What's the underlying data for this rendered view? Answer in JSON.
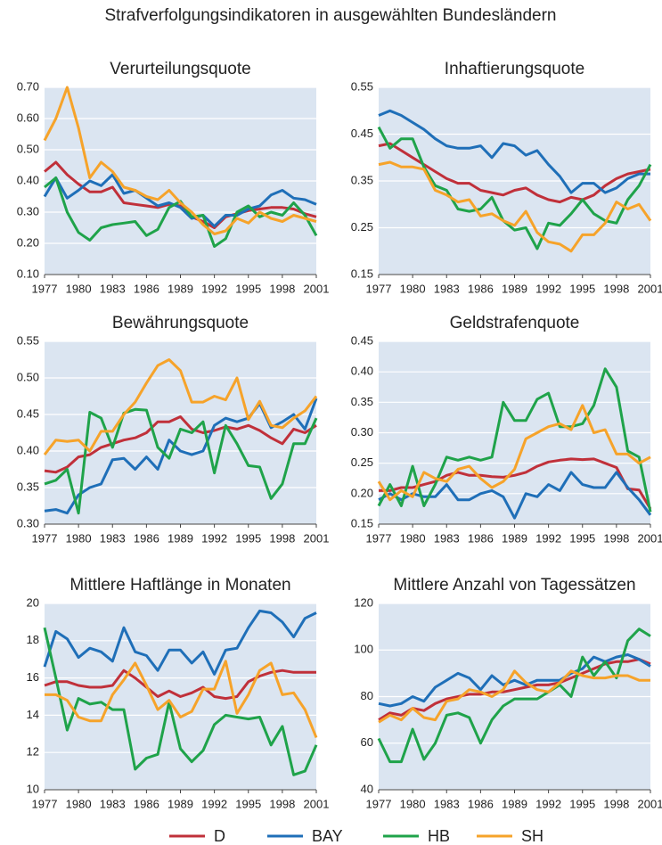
{
  "title": "Strafverfolgungsindikatoren in ausgewählten Bundesländern",
  "chart_data": [
    {
      "type": "line",
      "title": "Verurteilungsquote",
      "x": [
        1977,
        1978,
        1979,
        1980,
        1981,
        1982,
        1983,
        1984,
        1985,
        1986,
        1987,
        1988,
        1989,
        1990,
        1991,
        1992,
        1993,
        1994,
        1995,
        1996,
        1997,
        1998,
        1999,
        2000,
        2001
      ],
      "xlim": [
        1977,
        2001
      ],
      "xticks": [
        1977,
        1980,
        1983,
        1986,
        1989,
        1992,
        1995,
        1998,
        2001
      ],
      "ylim": [
        0.1,
        0.7
      ],
      "yticks": [
        {
          "value": 0.1,
          "label": "0.10"
        },
        {
          "value": 0.2,
          "label": "0.20"
        },
        {
          "value": 0.3,
          "label": "0.30"
        },
        {
          "value": 0.4,
          "label": "0.40"
        },
        {
          "value": 0.5,
          "label": "0.50"
        },
        {
          "value": 0.6,
          "label": "0.60"
        },
        {
          "value": 0.7,
          "label": "0.70"
        }
      ],
      "grid": true,
      "series": [
        {
          "name": "D",
          "color": "#c0303a",
          "values": [
            0.43,
            0.46,
            0.42,
            0.39,
            0.365,
            0.365,
            0.38,
            0.33,
            0.325,
            0.32,
            0.315,
            0.325,
            0.32,
            0.285,
            0.27,
            0.25,
            0.285,
            0.295,
            0.305,
            0.31,
            0.315,
            0.315,
            0.31,
            0.295,
            0.285
          ]
        },
        {
          "name": "BAY",
          "color": "#1f6fb8",
          "values": [
            0.35,
            0.41,
            0.345,
            0.37,
            0.4,
            0.385,
            0.42,
            0.36,
            0.37,
            0.345,
            0.32,
            0.33,
            0.315,
            0.28,
            0.29,
            0.255,
            0.29,
            0.29,
            0.31,
            0.32,
            0.355,
            0.37,
            0.345,
            0.34,
            0.325
          ]
        },
        {
          "name": "HB",
          "color": "#1fa34a",
          "values": [
            0.38,
            0.41,
            0.3,
            0.235,
            0.21,
            0.25,
            0.26,
            0.265,
            0.27,
            0.225,
            0.245,
            0.315,
            0.335,
            0.285,
            0.29,
            0.19,
            0.215,
            0.3,
            0.32,
            0.285,
            0.3,
            0.29,
            0.33,
            0.29,
            0.225
          ]
        },
        {
          "name": "SH",
          "color": "#f6a32a",
          "values": [
            0.53,
            0.6,
            0.7,
            0.57,
            0.41,
            0.46,
            0.43,
            0.38,
            0.37,
            0.35,
            0.34,
            0.37,
            0.33,
            0.3,
            0.26,
            0.23,
            0.24,
            0.28,
            0.265,
            0.3,
            0.28,
            0.27,
            0.29,
            0.28,
            0.27
          ]
        }
      ]
    },
    {
      "type": "line",
      "title": "Inhaftierungsquote",
      "x": [
        1977,
        1978,
        1979,
        1980,
        1981,
        1982,
        1983,
        1984,
        1985,
        1986,
        1987,
        1988,
        1989,
        1990,
        1991,
        1992,
        1993,
        1994,
        1995,
        1996,
        1997,
        1998,
        1999,
        2000,
        2001
      ],
      "xlim": [
        1977,
        2001
      ],
      "xticks": [
        1977,
        1980,
        1983,
        1986,
        1989,
        1992,
        1995,
        1998,
        2001
      ],
      "ylim": [
        0.15,
        0.55
      ],
      "yticks": [
        0.15,
        0.25,
        0.35,
        0.45,
        0.55
      ],
      "grid": true,
      "series": [
        {
          "name": "D",
          "color": "#c0303a",
          "values": [
            0.425,
            0.43,
            0.415,
            0.4,
            0.385,
            0.37,
            0.355,
            0.345,
            0.345,
            0.33,
            0.325,
            0.32,
            0.33,
            0.335,
            0.32,
            0.31,
            0.305,
            0.315,
            0.31,
            0.32,
            0.34,
            0.355,
            0.365,
            0.37,
            0.375
          ]
        },
        {
          "name": "BAY",
          "color": "#1f6fb8",
          "values": [
            0.49,
            0.5,
            0.49,
            0.475,
            0.46,
            0.44,
            0.425,
            0.42,
            0.42,
            0.425,
            0.4,
            0.43,
            0.425,
            0.405,
            0.415,
            0.385,
            0.36,
            0.325,
            0.345,
            0.345,
            0.325,
            0.335,
            0.355,
            0.365,
            0.365
          ]
        },
        {
          "name": "HB",
          "color": "#1fa34a",
          "values": [
            0.465,
            0.42,
            0.44,
            0.44,
            0.38,
            0.34,
            0.33,
            0.29,
            0.285,
            0.29,
            0.315,
            0.265,
            0.245,
            0.25,
            0.205,
            0.26,
            0.255,
            0.28,
            0.31,
            0.28,
            0.265,
            0.26,
            0.31,
            0.34,
            0.385
          ]
        },
        {
          "name": "SH",
          "color": "#f6a32a",
          "values": [
            0.385,
            0.39,
            0.38,
            0.38,
            0.375,
            0.33,
            0.32,
            0.305,
            0.31,
            0.275,
            0.28,
            0.265,
            0.255,
            0.285,
            0.24,
            0.22,
            0.215,
            0.2,
            0.235,
            0.235,
            0.26,
            0.305,
            0.29,
            0.3,
            0.265
          ]
        }
      ]
    },
    {
      "type": "line",
      "title": "Bewährungsquote",
      "x": [
        1977,
        1978,
        1979,
        1980,
        1981,
        1982,
        1983,
        1984,
        1985,
        1986,
        1987,
        1988,
        1989,
        1990,
        1991,
        1992,
        1993,
        1994,
        1995,
        1996,
        1997,
        1998,
        1999,
        2000,
        2001
      ],
      "xlim": [
        1977,
        2001
      ],
      "xticks": [
        1977,
        1980,
        1983,
        1986,
        1989,
        1992,
        1995,
        1998,
        2001
      ],
      "ylim": [
        0.3,
        0.55
      ],
      "yticks": [
        {
          "value": 0.3,
          "label": "0.30"
        },
        0.35,
        {
          "value": 0.4,
          "label": "0.40"
        },
        0.45,
        {
          "value": 0.5,
          "label": "0.50"
        },
        0.55
      ],
      "grid": true,
      "series": [
        {
          "name": "D",
          "color": "#c0303a",
          "values": [
            0.373,
            0.371,
            0.378,
            0.392,
            0.395,
            0.405,
            0.41,
            0.415,
            0.418,
            0.425,
            0.44,
            0.44,
            0.447,
            0.43,
            0.425,
            0.428,
            0.433,
            0.43,
            0.435,
            0.428,
            0.418,
            0.41,
            0.43,
            0.425,
            0.435
          ]
        },
        {
          "name": "BAY",
          "color": "#1f6fb8",
          "values": [
            0.318,
            0.32,
            0.315,
            0.34,
            0.35,
            0.355,
            0.388,
            0.39,
            0.375,
            0.392,
            0.375,
            0.415,
            0.4,
            0.395,
            0.4,
            0.435,
            0.445,
            0.44,
            0.445,
            0.465,
            0.432,
            0.44,
            0.45,
            0.43,
            0.472
          ]
        },
        {
          "name": "HB",
          "color": "#1fa34a",
          "values": [
            0.355,
            0.36,
            0.375,
            0.315,
            0.453,
            0.445,
            0.405,
            0.452,
            0.457,
            0.456,
            0.405,
            0.39,
            0.43,
            0.425,
            0.44,
            0.37,
            0.435,
            0.41,
            0.38,
            0.378,
            0.335,
            0.355,
            0.41,
            0.41,
            0.445
          ]
        },
        {
          "name": "SH",
          "color": "#f6a32a",
          "values": [
            0.395,
            0.415,
            0.413,
            0.415,
            0.4,
            0.427,
            0.427,
            0.45,
            0.467,
            0.493,
            0.517,
            0.525,
            0.51,
            0.467,
            0.467,
            0.475,
            0.47,
            0.5,
            0.443,
            0.468,
            0.435,
            0.432,
            0.445,
            0.455,
            0.475
          ]
        }
      ]
    },
    {
      "type": "line",
      "title": "Geldstrafenquote",
      "x": [
        1977,
        1978,
        1979,
        1980,
        1981,
        1982,
        1983,
        1984,
        1985,
        1986,
        1987,
        1988,
        1989,
        1990,
        1991,
        1992,
        1993,
        1994,
        1995,
        1996,
        1997,
        1998,
        1999,
        2000,
        2001
      ],
      "xlim": [
        1977,
        2001
      ],
      "xticks": [
        1977,
        1980,
        1983,
        1986,
        1989,
        1992,
        1995,
        1998,
        2001
      ],
      "ylim": [
        0.15,
        0.45
      ],
      "yticks": [
        0.15,
        {
          "value": 0.2,
          "label": "0.20"
        },
        0.25,
        {
          "value": 0.3,
          "label": "0.30"
        },
        0.35,
        {
          "value": 0.4,
          "label": "0.40"
        },
        0.45
      ],
      "grid": true,
      "series": [
        {
          "name": "D",
          "color": "#c0303a",
          "values": [
            0.205,
            0.205,
            0.21,
            0.21,
            0.215,
            0.22,
            0.23,
            0.235,
            0.23,
            0.23,
            0.228,
            0.227,
            0.23,
            0.235,
            0.245,
            0.252,
            0.255,
            0.257,
            0.256,
            0.257,
            0.25,
            0.243,
            0.208,
            0.206,
            0.175
          ]
        },
        {
          "name": "BAY",
          "color": "#1f6fb8",
          "values": [
            0.19,
            0.2,
            0.19,
            0.2,
            0.195,
            0.195,
            0.215,
            0.19,
            0.19,
            0.2,
            0.205,
            0.195,
            0.16,
            0.2,
            0.195,
            0.215,
            0.205,
            0.235,
            0.215,
            0.21,
            0.21,
            0.235,
            0.21,
            0.19,
            0.165
          ]
        },
        {
          "name": "HB",
          "color": "#1fa34a",
          "values": [
            0.18,
            0.215,
            0.18,
            0.245,
            0.18,
            0.215,
            0.26,
            0.255,
            0.26,
            0.255,
            0.26,
            0.35,
            0.32,
            0.32,
            0.355,
            0.365,
            0.31,
            0.31,
            0.315,
            0.345,
            0.405,
            0.375,
            0.27,
            0.26,
            0.17
          ]
        },
        {
          "name": "SH",
          "color": "#f6a32a",
          "values": [
            0.22,
            0.19,
            0.205,
            0.195,
            0.235,
            0.225,
            0.22,
            0.24,
            0.245,
            0.225,
            0.21,
            0.22,
            0.24,
            0.29,
            0.3,
            0.31,
            0.315,
            0.305,
            0.345,
            0.3,
            0.305,
            0.265,
            0.265,
            0.25,
            0.26
          ]
        }
      ]
    },
    {
      "type": "line",
      "title": "Mittlere Haftlänge in Monaten",
      "x": [
        1977,
        1978,
        1979,
        1980,
        1981,
        1982,
        1983,
        1984,
        1985,
        1986,
        1987,
        1988,
        1989,
        1990,
        1991,
        1992,
        1993,
        1994,
        1995,
        1996,
        1997,
        1998,
        1999,
        2000,
        2001
      ],
      "xlim": [
        1977,
        2001
      ],
      "xticks": [
        1977,
        1980,
        1983,
        1986,
        1989,
        1992,
        1995,
        1998,
        2001
      ],
      "ylim": [
        10,
        20
      ],
      "yticks": [
        10,
        12,
        14,
        16,
        18,
        20
      ],
      "grid": true,
      "series": [
        {
          "name": "D",
          "color": "#c0303a",
          "values": [
            15.6,
            15.8,
            15.8,
            15.6,
            15.5,
            15.5,
            15.6,
            16.4,
            16.0,
            15.5,
            15.0,
            15.3,
            15.0,
            15.2,
            15.5,
            15.0,
            14.9,
            15.0,
            15.8,
            16.1,
            16.3,
            16.4,
            16.3,
            16.3,
            16.3
          ]
        },
        {
          "name": "BAY",
          "color": "#1f6fb8",
          "values": [
            16.6,
            18.5,
            18.1,
            17.1,
            17.6,
            17.4,
            16.9,
            18.7,
            17.4,
            17.2,
            16.4,
            17.5,
            17.5,
            16.8,
            17.4,
            16.2,
            17.5,
            17.6,
            18.7,
            19.6,
            19.5,
            19.0,
            18.2,
            19.2,
            19.5
          ]
        },
        {
          "name": "HB",
          "color": "#1fa34a",
          "values": [
            18.7,
            16.0,
            13.2,
            14.9,
            14.6,
            14.7,
            14.3,
            14.3,
            11.1,
            11.7,
            11.9,
            14.7,
            12.2,
            11.5,
            12.1,
            13.5,
            14.0,
            13.9,
            13.8,
            13.9,
            12.4,
            13.4,
            10.8,
            11.0,
            12.4
          ]
        },
        {
          "name": "SH",
          "color": "#f6a32a",
          "values": [
            15.1,
            15.1,
            14.8,
            13.9,
            13.7,
            13.7,
            15.1,
            15.9,
            16.8,
            15.6,
            14.3,
            14.8,
            13.9,
            14.2,
            15.4,
            15.4,
            16.9,
            14.1,
            15.1,
            16.4,
            16.8,
            15.1,
            15.2,
            14.3,
            12.8
          ]
        }
      ]
    },
    {
      "type": "line",
      "title": "Mittlere Anzahl von Tagessätzen",
      "x": [
        1977,
        1978,
        1979,
        1980,
        1981,
        1982,
        1983,
        1984,
        1985,
        1986,
        1987,
        1988,
        1989,
        1990,
        1991,
        1992,
        1993,
        1994,
        1995,
        1996,
        1997,
        1998,
        1999,
        2000,
        2001
      ],
      "xlim": [
        1977,
        2001
      ],
      "xticks": [
        1977,
        1980,
        1983,
        1986,
        1989,
        1992,
        1995,
        1998,
        2001
      ],
      "ylim": [
        40,
        120
      ],
      "yticks": [
        40,
        60,
        80,
        100,
        120
      ],
      "grid": true,
      "series": [
        {
          "name": "D",
          "color": "#c0303a",
          "values": [
            70,
            73,
            72,
            75,
            74,
            77,
            79,
            80,
            81,
            81,
            82,
            82,
            83,
            84,
            85,
            85,
            86,
            88,
            90,
            92,
            94,
            95,
            95,
            96,
            94
          ]
        },
        {
          "name": "BAY",
          "color": "#1f6fb8",
          "values": [
            77,
            76,
            77,
            80,
            78,
            84,
            87,
            90,
            88,
            83,
            89,
            85,
            87,
            85,
            87,
            87,
            87,
            90,
            92,
            97,
            95,
            97,
            98,
            96,
            93
          ]
        },
        {
          "name": "HB",
          "color": "#1fa34a",
          "values": [
            62,
            52,
            52,
            66,
            53,
            60,
            72,
            73,
            71,
            60,
            70,
            76,
            79,
            79,
            79,
            82,
            85,
            80,
            97,
            89,
            95,
            88,
            104,
            109,
            106
          ]
        },
        {
          "name": "SH",
          "color": "#f6a32a",
          "values": [
            69,
            72,
            70,
            75,
            71,
            70,
            78,
            79,
            83,
            82,
            80,
            83,
            91,
            86,
            83,
            82,
            86,
            91,
            89,
            88,
            88,
            89,
            89,
            87,
            87
          ]
        }
      ]
    }
  ]
}
